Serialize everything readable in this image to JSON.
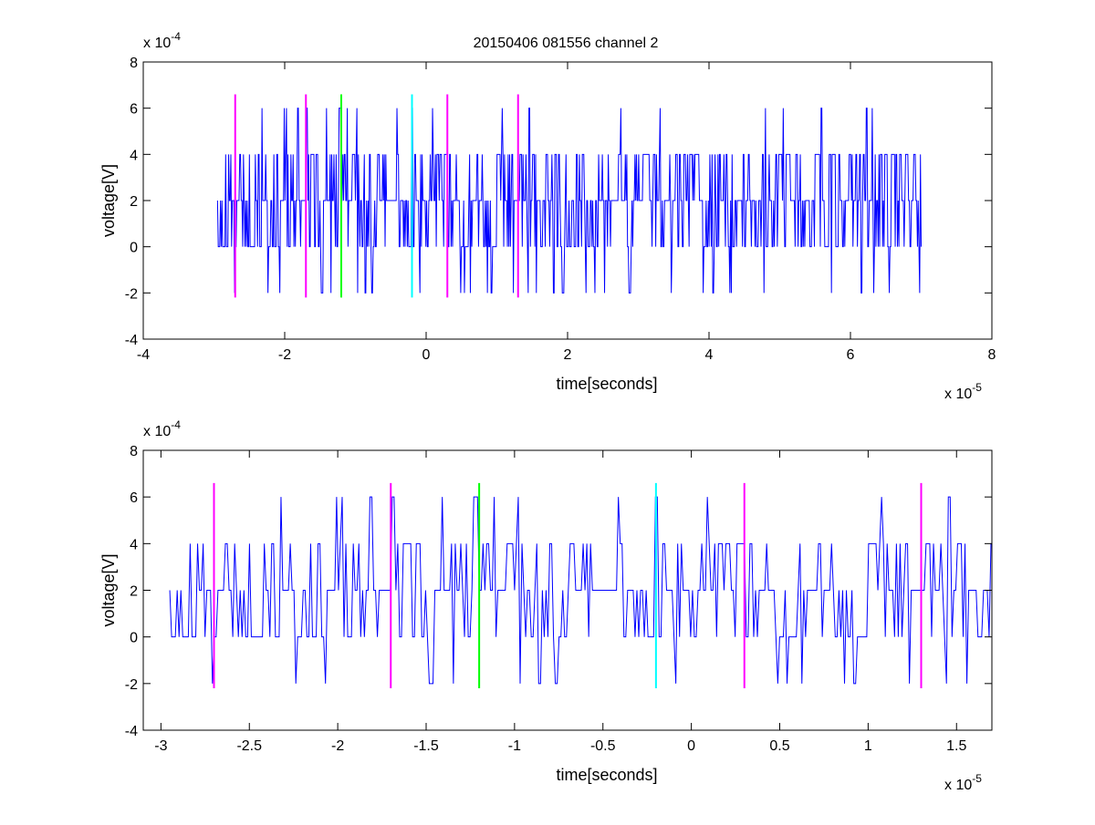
{
  "title": "20150406 081556 channel 2",
  "chart_data": [
    {
      "type": "line",
      "xlabel": "time[seconds]",
      "ylabel": "voltage[V]",
      "x_exponent_label": "x 10",
      "x_exponent_power": "-5",
      "y_exponent_label": "x 10",
      "y_exponent_power": "-4",
      "xlim": [
        -4,
        8
      ],
      "ylim": [
        -4,
        8
      ],
      "xticks": [
        -4,
        -2,
        0,
        2,
        4,
        6,
        8
      ],
      "xtick_labels": [
        "-4",
        "-2",
        "0",
        "2",
        "4",
        "6",
        "8"
      ],
      "yticks": [
        -4,
        -2,
        0,
        2,
        4,
        6,
        8
      ],
      "ytick_labels": [
        "-4",
        "-2",
        "0",
        "2",
        "4",
        "6",
        "8"
      ],
      "grid": false,
      "signal": {
        "color": "#0000ff",
        "x_start": -2.95,
        "x_end": 7.0,
        "levels": [
          -2,
          0,
          2,
          4,
          6
        ],
        "description_values": "noisy quantized signal mostly between 0 and 4 with spikes to 6 and -2"
      },
      "markers": [
        {
          "x": -2.7,
          "color": "#ff00ff",
          "y_range": [
            -2.2,
            6.6
          ]
        },
        {
          "x": -1.7,
          "color": "#ff00ff",
          "y_range": [
            -2.2,
            6.6
          ]
        },
        {
          "x": -1.2,
          "color": "#00ff00",
          "y_range": [
            -2.2,
            6.6
          ]
        },
        {
          "x": -0.2,
          "color": "#00ffff",
          "y_range": [
            -2.2,
            6.6
          ]
        },
        {
          "x": 0.3,
          "color": "#ff00ff",
          "y_range": [
            -2.2,
            6.6
          ]
        },
        {
          "x": 1.3,
          "color": "#ff00ff",
          "y_range": [
            -2.2,
            6.6
          ]
        }
      ]
    },
    {
      "type": "line",
      "xlabel": "time[seconds]",
      "ylabel": "voltage[V]",
      "x_exponent_label": "x 10",
      "x_exponent_power": "-5",
      "y_exponent_label": "x 10",
      "y_exponent_power": "-4",
      "xlim": [
        -3.1,
        1.7
      ],
      "ylim": [
        -4,
        8
      ],
      "xticks": [
        -3,
        -2.5,
        -2,
        -1.5,
        -1,
        -0.5,
        0,
        0.5,
        1,
        1.5
      ],
      "xtick_labels": [
        "-3",
        "-2.5",
        "-2",
        "-1.5",
        "-1",
        "-0.5",
        "0",
        "0.5",
        "1",
        "1.5"
      ],
      "yticks": [
        -4,
        -2,
        0,
        2,
        4,
        6,
        8
      ],
      "ytick_labels": [
        "-4",
        "-2",
        "0",
        "2",
        "4",
        "6",
        "8"
      ],
      "grid": false,
      "signal": {
        "color": "#0000ff",
        "x_start": -2.95,
        "x_end": 1.7,
        "levels": [
          -2,
          0,
          2,
          4,
          6
        ]
      },
      "markers": [
        {
          "x": -2.7,
          "color": "#ff00ff",
          "y_range": [
            -2.2,
            6.6
          ]
        },
        {
          "x": -1.7,
          "color": "#ff00ff",
          "y_range": [
            -2.2,
            6.6
          ]
        },
        {
          "x": -1.2,
          "color": "#00ff00",
          "y_range": [
            -2.2,
            6.6
          ]
        },
        {
          "x": -0.2,
          "color": "#00ffff",
          "y_range": [
            -2.2,
            6.6
          ]
        },
        {
          "x": 0.3,
          "color": "#ff00ff",
          "y_range": [
            -2.2,
            6.6
          ]
        },
        {
          "x": 1.3,
          "color": "#ff00ff",
          "y_range": [
            -2.2,
            6.6
          ]
        }
      ]
    }
  ]
}
